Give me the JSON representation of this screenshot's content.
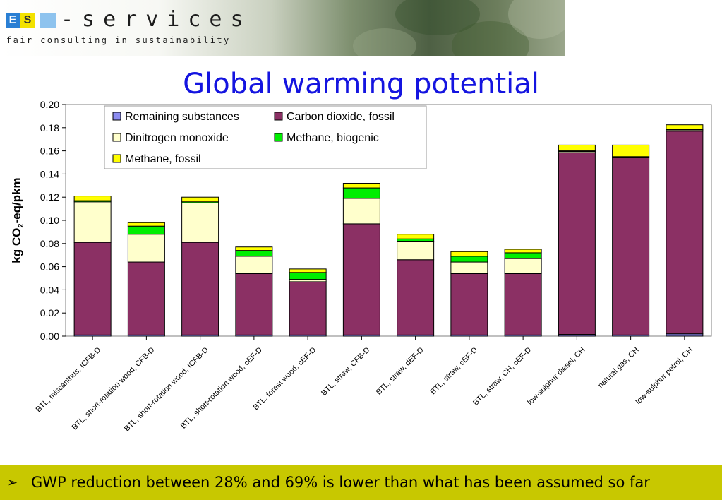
{
  "header": {
    "logo_text": "-services",
    "logo_block_1": "E",
    "logo_block_2": "S",
    "tagline": "fair consulting in sustainability"
  },
  "slide": {
    "title": "Global warming potential",
    "footer_bullet": "➢",
    "footer_text": "GWP reduction between 28% and 69% is lower than what has been assumed so far"
  },
  "chart_data": {
    "type": "bar",
    "stacked": true,
    "title": "",
    "ylabel": "kg CO2-eq/pkm",
    "ylim": [
      0,
      0.2
    ],
    "yticks": [
      "0.00",
      "0.02",
      "0.04",
      "0.06",
      "0.08",
      "0.10",
      "0.12",
      "0.14",
      "0.16",
      "0.18",
      "0.20"
    ],
    "legend_position": "top",
    "grid": false,
    "categories": [
      "BTL, miscanthus, ICFB-D",
      "BTL, short-rotation wood, CFB-D",
      "BTL, short-rotation wood, ICFB-D",
      "BTL, short-rotation wood, cEF-D",
      "BTL, forest wood, cEF-D",
      "BTL, straw, CFB-D",
      "BTL, straw, dEF-D",
      "BTL, straw, cEF-D",
      "BTL, straw, CH, cEF-D",
      "low-sulphur diesel, CH",
      "natural gas, CH",
      "low-sulphur petrol, CH"
    ],
    "series": [
      {
        "name": "Remaining substances",
        "color": "#8c8cf0",
        "values": [
          0.001,
          0.001,
          0.001,
          0.001,
          0.001,
          0.001,
          0.001,
          0.001,
          0.001,
          0.0015,
          0.001,
          0.002
        ]
      },
      {
        "name": "Carbon dioxide, fossil",
        "color": "#8b3064",
        "values": [
          0.08,
          0.063,
          0.08,
          0.053,
          0.046,
          0.096,
          0.065,
          0.053,
          0.053,
          0.157,
          0.153,
          0.175
        ]
      },
      {
        "name": "Dinitrogen monoxide",
        "color": "#ffffcc",
        "values": [
          0.035,
          0.024,
          0.034,
          0.015,
          0.002,
          0.022,
          0.016,
          0.01,
          0.013,
          0.001,
          0.0005,
          0.001
        ]
      },
      {
        "name": "Methane, biogenic",
        "color": "#00ee00",
        "values": [
          0.001,
          0.007,
          0.001,
          0.005,
          0.006,
          0.009,
          0.002,
          0.005,
          0.005,
          0.0005,
          0.0005,
          0.0005
        ]
      },
      {
        "name": "Methane, fossil",
        "color": "#ffff00",
        "values": [
          0.004,
          0.003,
          0.004,
          0.003,
          0.003,
          0.004,
          0.004,
          0.004,
          0.003,
          0.005,
          0.01,
          0.004
        ]
      }
    ]
  }
}
